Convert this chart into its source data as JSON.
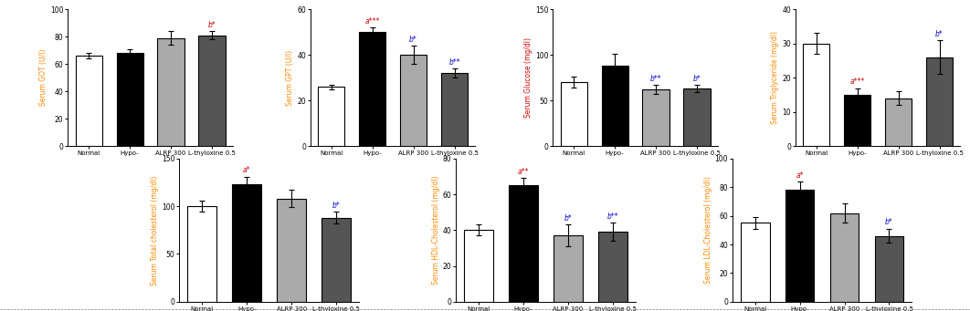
{
  "charts": [
    {
      "ylabel": "Serum GOT (U/l)",
      "ylim": [
        0,
        100
      ],
      "yticks": [
        0,
        20,
        40,
        60,
        80,
        100
      ],
      "values": [
        66,
        68,
        79,
        81
      ],
      "errors": [
        2,
        3,
        5,
        3
      ],
      "annotations": [
        {
          "bar": 3,
          "text": "b*",
          "color": "#cc0000"
        }
      ],
      "ylabel_color": "#ff8800"
    },
    {
      "ylabel": "Serum GPT (U/l)",
      "ylim": [
        0,
        60
      ],
      "yticks": [
        0,
        20,
        40,
        60
      ],
      "values": [
        26,
        50,
        40,
        32
      ],
      "errors": [
        1,
        2,
        4,
        2
      ],
      "annotations": [
        {
          "bar": 1,
          "text": "a***",
          "color": "#cc0000"
        },
        {
          "bar": 2,
          "text": "b*",
          "color": "#0000cc"
        },
        {
          "bar": 3,
          "text": "b**",
          "color": "#0000cc"
        }
      ],
      "ylabel_color": "#ff8800"
    },
    {
      "ylabel": "Serum Glucose (mg/dl)",
      "ylim": [
        0,
        150
      ],
      "yticks": [
        0,
        50,
        100,
        150
      ],
      "values": [
        70,
        88,
        62,
        63
      ],
      "errors": [
        6,
        13,
        5,
        4
      ],
      "annotations": [
        {
          "bar": 2,
          "text": "b**",
          "color": "#0000cc"
        },
        {
          "bar": 3,
          "text": "b*",
          "color": "#0000cc"
        }
      ],
      "ylabel_color": "#cc0000"
    },
    {
      "ylabel": "Serum Triglyceride (mg/dl)",
      "ylim": [
        0,
        40
      ],
      "yticks": [
        0,
        10,
        20,
        30,
        40
      ],
      "values": [
        30,
        15,
        14,
        26
      ],
      "errors": [
        3,
        2,
        2,
        5
      ],
      "annotations": [
        {
          "bar": 1,
          "text": "a***",
          "color": "#cc0000"
        },
        {
          "bar": 3,
          "text": "b*",
          "color": "#0000cc"
        }
      ],
      "ylabel_color": "#ff8800"
    },
    {
      "ylabel": "Serum Total cholesterol (mg/dl)",
      "ylim": [
        0,
        150
      ],
      "yticks": [
        0,
        50,
        100,
        150
      ],
      "values": [
        100,
        123,
        108,
        88
      ],
      "errors": [
        6,
        8,
        9,
        6
      ],
      "annotations": [
        {
          "bar": 1,
          "text": "a*",
          "color": "#cc0000"
        },
        {
          "bar": 3,
          "text": "b*",
          "color": "#0000cc"
        }
      ],
      "ylabel_color": "#ff8800"
    },
    {
      "ylabel": "Serum HDL-Cholesterol (mg/dl)",
      "ylim": [
        0,
        80
      ],
      "yticks": [
        0,
        20,
        40,
        60,
        80
      ],
      "values": [
        40,
        65,
        37,
        39
      ],
      "errors": [
        3,
        4,
        6,
        5
      ],
      "annotations": [
        {
          "bar": 1,
          "text": "a**",
          "color": "#cc0000"
        },
        {
          "bar": 2,
          "text": "b*",
          "color": "#0000cc"
        },
        {
          "bar": 3,
          "text": "b**",
          "color": "#0000cc"
        }
      ],
      "ylabel_color": "#ff8800"
    },
    {
      "ylabel": "Serum LDL-Cholesterol (mg/dl)",
      "ylim": [
        0,
        100
      ],
      "yticks": [
        0,
        20,
        40,
        60,
        80,
        100
      ],
      "values": [
        55,
        78,
        62,
        46
      ],
      "errors": [
        4,
        6,
        7,
        5
      ],
      "annotations": [
        {
          "bar": 1,
          "text": "a*",
          "color": "#cc0000"
        },
        {
          "bar": 3,
          "text": "b*",
          "color": "#0000cc"
        }
      ],
      "ylabel_color": "#ff8800"
    }
  ],
  "bar_colors": [
    "white",
    "black",
    "#aaaaaa",
    "#555555"
  ],
  "bar_edge_color": "black",
  "categories": [
    "Normal",
    "Hypo-",
    "ALRP 300",
    "L-thyloxine 0.5"
  ],
  "fig_bg": "white",
  "dpi": 100,
  "figsize": [
    10.62,
    3.41
  ]
}
